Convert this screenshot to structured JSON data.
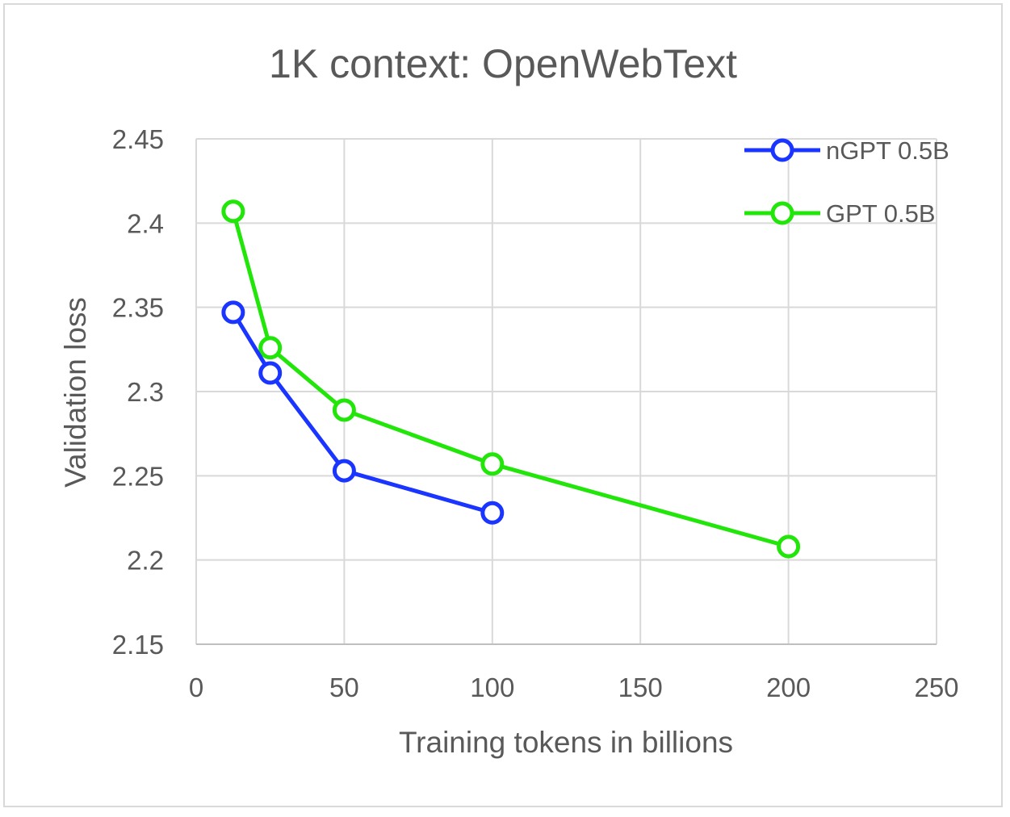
{
  "chart_data": {
    "type": "line",
    "title": "1K context: OpenWebText",
    "xlabel": "Training tokens in billions",
    "ylabel": "Validation loss",
    "xlim": [
      0,
      250
    ],
    "ylim": [
      2.15,
      2.45
    ],
    "xticks": [
      0,
      50,
      100,
      150,
      200,
      250
    ],
    "xtick_labels": [
      "0",
      "50",
      "100",
      "150",
      "200",
      "250"
    ],
    "yticks": [
      2.15,
      2.2,
      2.25,
      2.3,
      2.35,
      2.4,
      2.45
    ],
    "ytick_labels": [
      "2.15",
      "2.2",
      "2.25",
      "2.3",
      "2.35",
      "2.4",
      "2.45"
    ],
    "grid": true,
    "legend_position": "top-right",
    "series": [
      {
        "name": "nGPT 0.5B",
        "color": "#1a35ff",
        "x": [
          12.5,
          25,
          50,
          100
        ],
        "y": [
          2.347,
          2.311,
          2.253,
          2.228
        ]
      },
      {
        "name": "GPT 0.5B",
        "color": "#22e60a",
        "x": [
          12.5,
          25,
          50,
          100,
          200
        ],
        "y": [
          2.407,
          2.326,
          2.289,
          2.257,
          2.208
        ]
      }
    ]
  }
}
